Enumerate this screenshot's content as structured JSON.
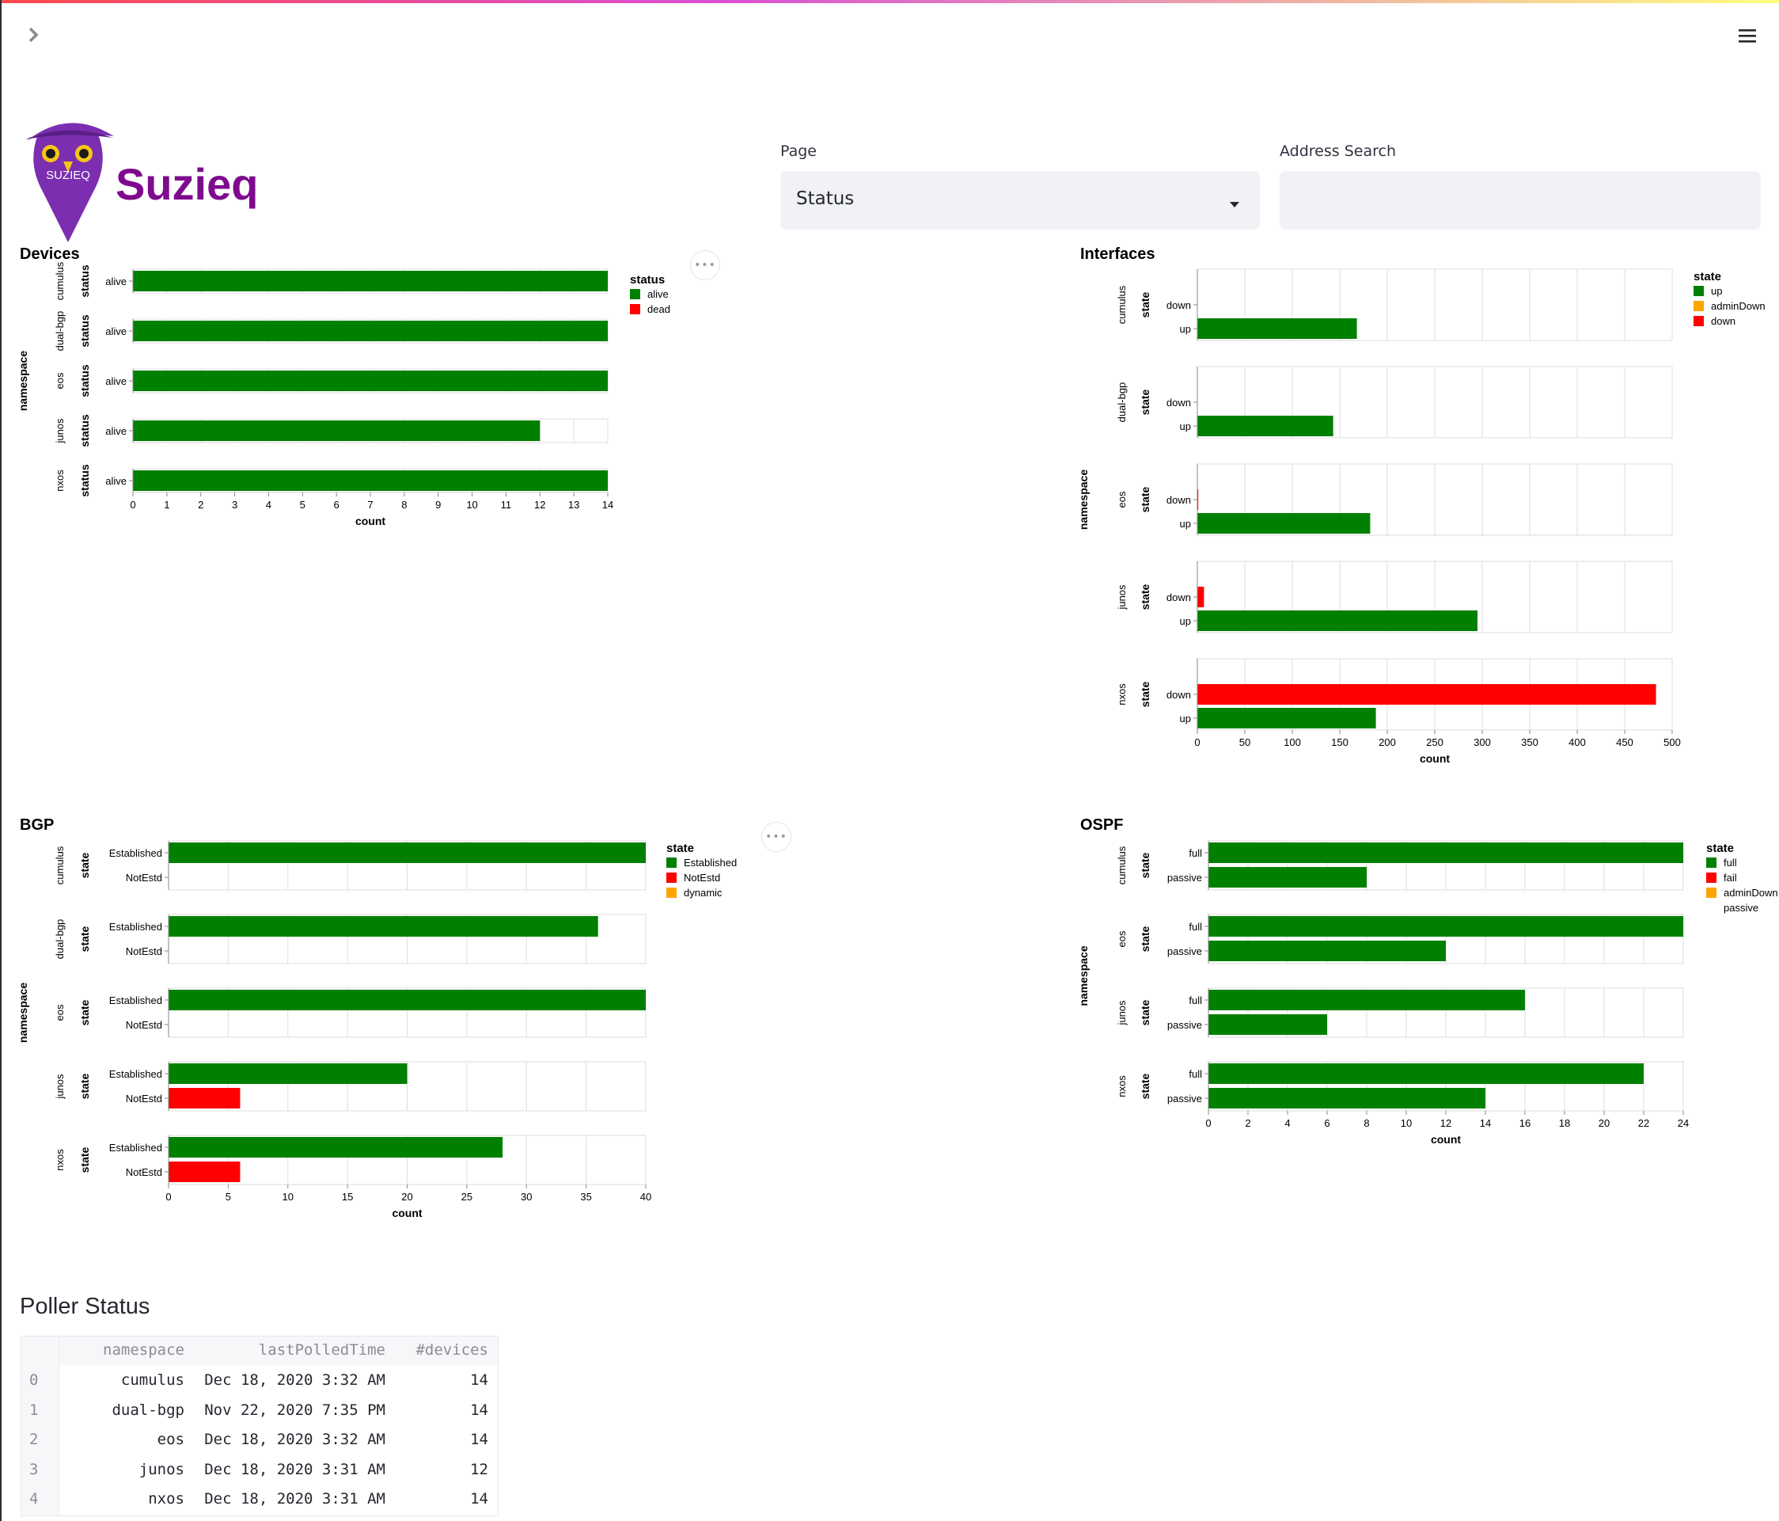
{
  "app": {
    "brand": "Suzieq",
    "logo_text": "SUZIEQ",
    "brand_color": "#7e0b8e"
  },
  "controls": {
    "page_label": "Page",
    "page_value": "Status",
    "search_label": "Address Search",
    "search_value": ""
  },
  "colors": {
    "green": "#008000",
    "red": "#ff0000",
    "orange": "#ffa500"
  },
  "chart_data": [
    {
      "id": "devices",
      "type": "bar",
      "title": "Devices",
      "orientation": "horizontal",
      "facet_title": "namespace",
      "row_title": "status",
      "xlabel": "count",
      "xlim": [
        0,
        14
      ],
      "xticks": [
        0,
        1,
        2,
        3,
        4,
        5,
        6,
        7,
        8,
        9,
        10,
        11,
        12,
        13,
        14
      ],
      "categories": [
        "alive"
      ],
      "legend": {
        "title": "status",
        "items": [
          {
            "label": "alive",
            "color": "#008000"
          },
          {
            "label": "dead",
            "color": "#ff0000"
          }
        ]
      },
      "facets": [
        {
          "name": "cumulus",
          "bars": [
            {
              "label": "alive",
              "value": 14,
              "color": "#008000"
            }
          ]
        },
        {
          "name": "dual-bgp",
          "bars": [
            {
              "label": "alive",
              "value": 14,
              "color": "#008000"
            }
          ]
        },
        {
          "name": "eos",
          "bars": [
            {
              "label": "alive",
              "value": 14,
              "color": "#008000"
            }
          ]
        },
        {
          "name": "junos",
          "bars": [
            {
              "label": "alive",
              "value": 12,
              "color": "#008000"
            }
          ]
        },
        {
          "name": "nxos",
          "bars": [
            {
              "label": "alive",
              "value": 14,
              "color": "#008000"
            }
          ]
        }
      ]
    },
    {
      "id": "interfaces",
      "type": "bar",
      "title": "Interfaces",
      "orientation": "horizontal",
      "facet_title": "namespace",
      "row_title": "state",
      "xlabel": "count",
      "xlim": [
        0,
        500
      ],
      "xticks": [
        0,
        50,
        100,
        150,
        200,
        250,
        300,
        350,
        400,
        450,
        500
      ],
      "categories": [
        "down",
        "up"
      ],
      "legend": {
        "title": "state",
        "items": [
          {
            "label": "up",
            "color": "#008000"
          },
          {
            "label": "adminDown",
            "color": "#ffa500"
          },
          {
            "label": "down",
            "color": "#ff0000"
          }
        ]
      },
      "facets": [
        {
          "name": "cumulus",
          "bars": [
            {
              "label": "down",
              "value": 0,
              "color": "#ff0000"
            },
            {
              "label": "up",
              "value": 168,
              "color": "#008000"
            }
          ]
        },
        {
          "name": "dual-bgp",
          "bars": [
            {
              "label": "down",
              "value": 0,
              "color": "#ff0000"
            },
            {
              "label": "up",
              "value": 143,
              "color": "#008000"
            }
          ]
        },
        {
          "name": "eos",
          "bars": [
            {
              "label": "down",
              "value": 1,
              "color": "#ff0000"
            },
            {
              "label": "up",
              "value": 182,
              "color": "#008000"
            }
          ]
        },
        {
          "name": "junos",
          "bars": [
            {
              "label": "down",
              "value": 7,
              "color": "#ff0000"
            },
            {
              "label": "up",
              "value": 295,
              "color": "#008000"
            }
          ]
        },
        {
          "name": "nxos",
          "bars": [
            {
              "label": "down",
              "value": 483,
              "color": "#ff0000"
            },
            {
              "label": "up",
              "value": 188,
              "color": "#008000"
            }
          ]
        }
      ]
    },
    {
      "id": "bgp",
      "type": "bar",
      "title": "BGP",
      "orientation": "horizontal",
      "facet_title": "namespace",
      "row_title": "state",
      "xlabel": "count",
      "xlim": [
        0,
        40
      ],
      "xticks": [
        0,
        5,
        10,
        15,
        20,
        25,
        30,
        35,
        40
      ],
      "categories": [
        "Established",
        "NotEstd"
      ],
      "legend": {
        "title": "state",
        "items": [
          {
            "label": "Established",
            "color": "#008000"
          },
          {
            "label": "NotEstd",
            "color": "#ff0000"
          },
          {
            "label": "dynamic",
            "color": "#ffa500"
          }
        ]
      },
      "facets": [
        {
          "name": "cumulus",
          "bars": [
            {
              "label": "Established",
              "value": 40,
              "color": "#008000"
            },
            {
              "label": "NotEstd",
              "value": 0,
              "color": "#ff0000"
            }
          ]
        },
        {
          "name": "dual-bgp",
          "bars": [
            {
              "label": "Established",
              "value": 36,
              "color": "#008000"
            },
            {
              "label": "NotEstd",
              "value": 0,
              "color": "#ff0000"
            }
          ]
        },
        {
          "name": "eos",
          "bars": [
            {
              "label": "Established",
              "value": 40,
              "color": "#008000"
            },
            {
              "label": "NotEstd",
              "value": 0,
              "color": "#ff0000"
            }
          ]
        },
        {
          "name": "junos",
          "bars": [
            {
              "label": "Established",
              "value": 20,
              "color": "#008000"
            },
            {
              "label": "NotEstd",
              "value": 6,
              "color": "#ff0000"
            }
          ]
        },
        {
          "name": "nxos",
          "bars": [
            {
              "label": "Established",
              "value": 28,
              "color": "#008000"
            },
            {
              "label": "NotEstd",
              "value": 6,
              "color": "#ff0000"
            }
          ]
        }
      ]
    },
    {
      "id": "ospf",
      "type": "bar",
      "title": "OSPF",
      "orientation": "horizontal",
      "facet_title": "namespace",
      "row_title": "state",
      "xlabel": "count",
      "xlim": [
        0,
        24
      ],
      "xticks": [
        0,
        2,
        4,
        6,
        8,
        10,
        12,
        14,
        16,
        18,
        20,
        22,
        24
      ],
      "categories": [
        "full",
        "passive"
      ],
      "legend": {
        "title": "state",
        "items": [
          {
            "label": "full",
            "color": "#008000"
          },
          {
            "label": "fail",
            "color": "#ff0000"
          },
          {
            "label": "adminDown",
            "color": "#ffa500"
          },
          {
            "label": "passive",
            "color": null
          }
        ]
      },
      "facets": [
        {
          "name": "cumulus",
          "bars": [
            {
              "label": "full",
              "value": 24,
              "color": "#008000"
            },
            {
              "label": "passive",
              "value": 8,
              "color": "#008000"
            }
          ]
        },
        {
          "name": "eos",
          "bars": [
            {
              "label": "full",
              "value": 24,
              "color": "#008000"
            },
            {
              "label": "passive",
              "value": 12,
              "color": "#008000"
            }
          ]
        },
        {
          "name": "junos",
          "bars": [
            {
              "label": "full",
              "value": 16,
              "color": "#008000"
            },
            {
              "label": "passive",
              "value": 6,
              "color": "#008000"
            }
          ]
        },
        {
          "name": "nxos",
          "bars": [
            {
              "label": "full",
              "value": 22,
              "color": "#008000"
            },
            {
              "label": "passive",
              "value": 14,
              "color": "#008000"
            }
          ]
        }
      ]
    }
  ],
  "poller": {
    "title": "Poller Status",
    "columns": [
      "namespace",
      "lastPolledTime",
      "#devices"
    ],
    "rows": [
      {
        "idx": "0",
        "namespace": "cumulus",
        "time": "Dec 18, 2020 3:32 AM",
        "devices": "14"
      },
      {
        "idx": "1",
        "namespace": "dual-bgp",
        "time": "Nov 22, 2020 7:35 PM",
        "devices": "14"
      },
      {
        "idx": "2",
        "namespace": "eos",
        "time": "Dec 18, 2020 3:32 AM",
        "devices": "14"
      },
      {
        "idx": "3",
        "namespace": "junos",
        "time": "Dec 18, 2020 3:31 AM",
        "devices": "12"
      },
      {
        "idx": "4",
        "namespace": "nxos",
        "time": "Dec 18, 2020 3:31 AM",
        "devices": "14"
      }
    ]
  }
}
